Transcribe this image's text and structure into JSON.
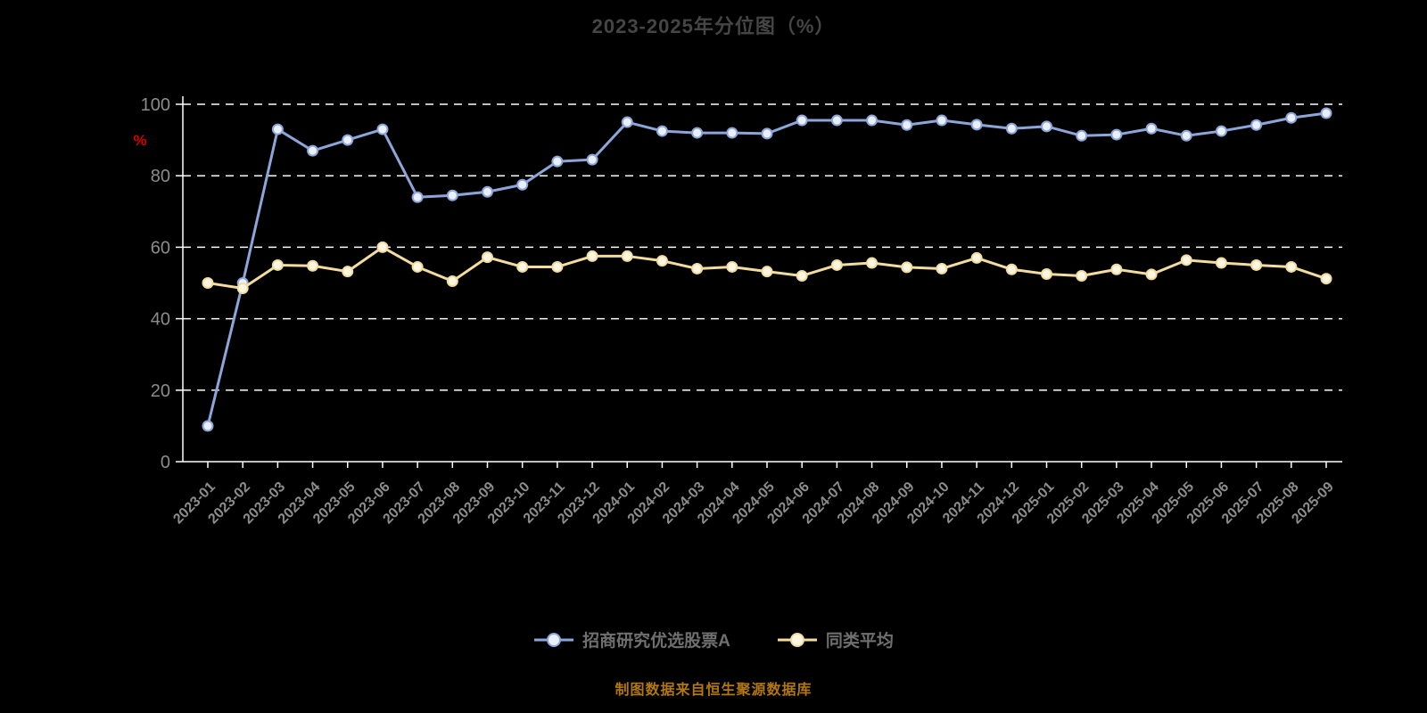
{
  "title": "2023-2025年分位图（%）",
  "caption": "制图数据来自恒生聚源数据库",
  "colors": {
    "background": "#000000",
    "grid": "#ffffff",
    "axis": "#ffffff",
    "tick_label": "#8c8c8c",
    "title": "#454545",
    "ylabel": "#d40000",
    "caption": "#b2770d",
    "legend_text": "#6f6f6f"
  },
  "chart_data": {
    "type": "line",
    "title": "2023-2025年分位图（%）",
    "ylabel": "%",
    "ylim": [
      0,
      100
    ],
    "yticks": [
      0,
      20,
      40,
      60,
      80,
      100
    ],
    "grid": "dashed-horizontal",
    "legend_position": "bottom",
    "x": [
      "2023-01",
      "2023-02",
      "2023-03",
      "2023-04",
      "2023-05",
      "2023-06",
      "2023-07",
      "2023-08",
      "2023-09",
      "2023-10",
      "2023-11",
      "2023-12",
      "2024-01",
      "2024-02",
      "2024-03",
      "2024-04",
      "2024-05",
      "2024-06",
      "2024-07",
      "2024-08",
      "2024-09",
      "2024-10",
      "2024-11",
      "2024-12",
      "2025-01",
      "2025-02",
      "2025-03",
      "2025-04",
      "2025-05",
      "2025-06",
      "2025-07",
      "2025-08",
      "2025-09"
    ],
    "series": [
      {
        "name": "招商研究优选股票A",
        "color": "#8ca6d9",
        "marker_fill": "#e9effb",
        "values": [
          10,
          50,
          93,
          87,
          90,
          93,
          74,
          74.5,
          75.5,
          77.5,
          84,
          84.5,
          95,
          92.5,
          92,
          92,
          91.8,
          95.5,
          95.5,
          95.5,
          94.2,
          95.5,
          94.3,
          93.2,
          93.8,
          91.2,
          91.5,
          93.2,
          91.2,
          92.5,
          94.2,
          96.2,
          97.5
        ]
      },
      {
        "name": "同类平均",
        "color": "#f2dc9e",
        "marker_fill": "#fdf6e3",
        "values": [
          50,
          48.5,
          55,
          54.8,
          53.2,
          60,
          54.5,
          50.5,
          57.2,
          54.5,
          54.5,
          57.5,
          57.5,
          56.2,
          54,
          54.5,
          53.2,
          52,
          55,
          55.6,
          54.4,
          54,
          57,
          53.8,
          52.5,
          52,
          53.8,
          52.4,
          56.4,
          55.6,
          55,
          54.5,
          51.2
        ]
      }
    ]
  }
}
